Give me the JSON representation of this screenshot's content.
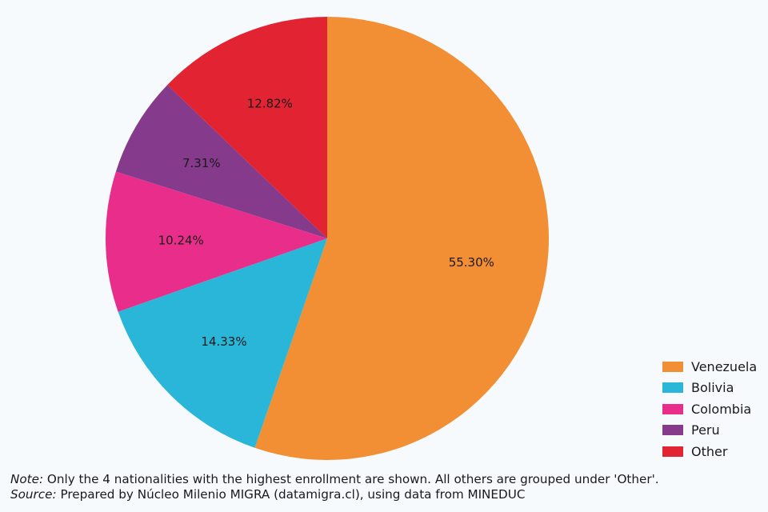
{
  "chart_data": {
    "type": "pie",
    "slices": [
      {
        "label": "Venezuela",
        "value": 55.3,
        "display": "55.30%",
        "color": "#f28e33"
      },
      {
        "label": "Bolivia",
        "value": 14.33,
        "display": "14.33%",
        "color": "#29b6d8"
      },
      {
        "label": "Colombia",
        "value": 10.24,
        "display": "10.24%",
        "color": "#e82e8a"
      },
      {
        "label": "Peru",
        "value": 7.31,
        "display": "7.31%",
        "color": "#853a8b"
      },
      {
        "label": "Other",
        "value": 12.82,
        "display": "12.82%",
        "color": "#e12332"
      }
    ],
    "legend_position": "bottom-right"
  },
  "notes": {
    "note_prefix": "Note:",
    "note_text": " Only the 4 nationalities with the highest enrollment are shown. All others are grouped under 'Other'.",
    "source_prefix": "Source:",
    "source_text": " Prepared by Núcleo Milenio MIGRA (datamigra.cl), using data from MINEDUC"
  }
}
